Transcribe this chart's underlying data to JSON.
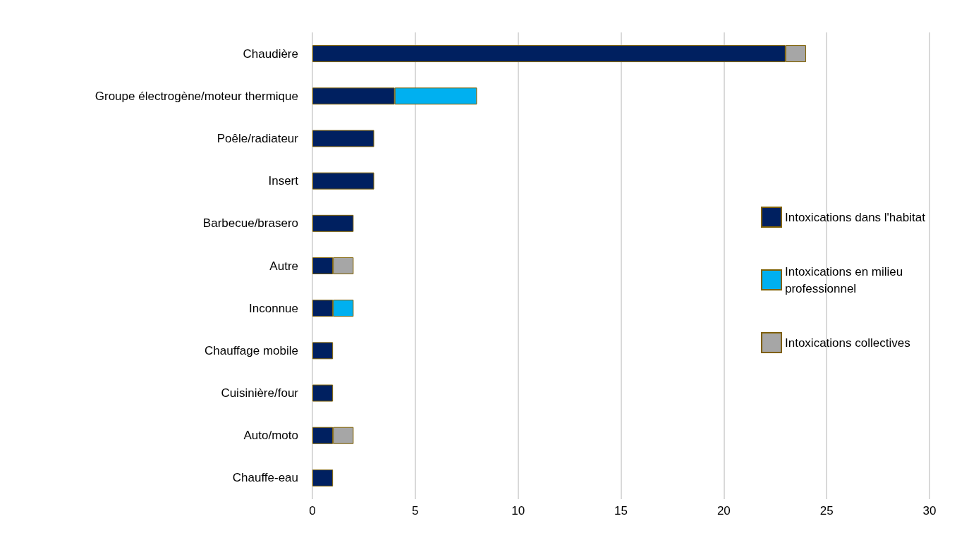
{
  "chart_data": {
    "type": "bar",
    "orientation": "horizontal",
    "stacked": true,
    "categories": [
      "Chaudière",
      "Groupe électrogène/moteur thermique",
      "Poêle/radiateur",
      "Insert",
      "Barbecue/brasero",
      "Autre",
      "Inconnue",
      "Chauffage mobile",
      "Cuisinière/four",
      "Auto/moto",
      "Chauffe-eau"
    ],
    "series": [
      {
        "name": "Intoxications dans l'habitat",
        "color": "#002060",
        "values": [
          23,
          4,
          3,
          3,
          2,
          1,
          1,
          1,
          1,
          1,
          1
        ]
      },
      {
        "name": "Intoxications en milieu professionnel",
        "color": "#00b0f0",
        "values": [
          null,
          4,
          null,
          null,
          null,
          null,
          1,
          null,
          null,
          null,
          null
        ]
      },
      {
        "name": "Intoxications collectives",
        "color": "#a6a6a6",
        "values": [
          1,
          null,
          null,
          null,
          null,
          1,
          null,
          null,
          null,
          1,
          null
        ]
      }
    ],
    "xlim": [
      0,
      30
    ],
    "xticks": [
      0,
      5,
      10,
      15,
      20,
      25,
      30
    ],
    "grid": "x",
    "legend": "right"
  }
}
